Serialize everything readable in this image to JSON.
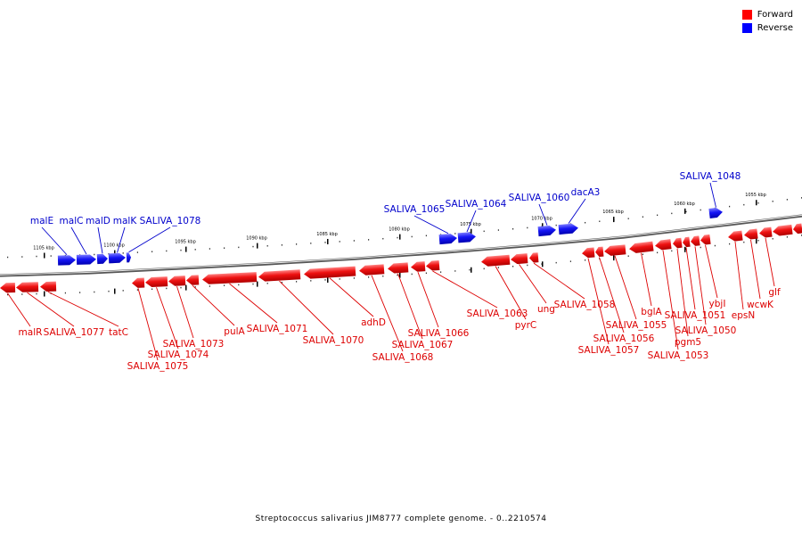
{
  "legend": {
    "forward_label": "Forward",
    "reverse_label": "Reverse",
    "forward_color": "#ff0000",
    "reverse_color": "#0000ff"
  },
  "footer_caption": "Streptococcus salivarius JIM8777 complete genome. - 0..2210574",
  "scale_labels": [
    "1105 kbp",
    "1100 kbp",
    "1095 kbp",
    "1090 kbp",
    "1085 kbp",
    "1080 kbp",
    "1075 kbp",
    "1070 kbp",
    "1065 kbp",
    "1060 kbp",
    "1055 kbp"
  ],
  "reverse_genes": [
    "malE",
    "malC",
    "malD",
    "malK",
    "SALIVA_1078",
    "SALIVA_1065",
    "SALIVA_1064",
    "SALIVA_1060",
    "dacA3",
    "SALIVA_1048"
  ],
  "forward_genes": [
    "malR",
    "SALIVA_1077",
    "tatC",
    "SALIVA_1075",
    "SALIVA_1074",
    "SALIVA_1073",
    "pulA",
    "SALIVA_1071",
    "SALIVA_1070",
    "adhD",
    "SALIVA_1068",
    "SALIVA_1067",
    "SALIVA_1066",
    "SALIVA_1063",
    "pyrC",
    "ung",
    "SALIVA_1058",
    "SALIVA_1057",
    "SALIVA_1056",
    "SALIVA_1055",
    "bglA",
    "SALIVA_1053",
    "pgm5",
    "SALIVA_1051",
    "SALIVA_1050",
    "ybjI",
    "epsN",
    "wcwK",
    "glf"
  ]
}
